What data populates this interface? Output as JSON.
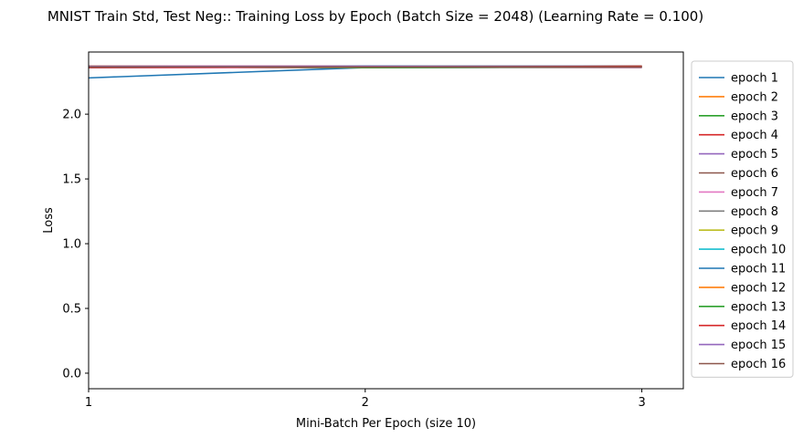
{
  "chart_data": {
    "type": "line",
    "title": "MNIST Train Std, Test Neg:: Training Loss by Epoch (Batch Size = 2048) (Learning Rate = 0.100)",
    "xlabel": "Mini-Batch Per Epoch (size 10)",
    "ylabel": "Loss",
    "xlim": [
      1,
      3.15
    ],
    "ylim": [
      -0.12,
      2.48
    ],
    "xticks": [
      1,
      2,
      3
    ],
    "yticks": [
      0.0,
      0.5,
      1.0,
      1.5,
      2.0
    ],
    "ytick_labels": [
      "0.0",
      "0.5",
      "1.0",
      "1.5",
      "2.0"
    ],
    "grid": false,
    "legend_placement": "outside-right",
    "x": [
      1,
      2,
      3
    ],
    "series": [
      {
        "name": "epoch 1",
        "values": [
          2.28,
          2.36,
          2.365
        ],
        "color": "#1f77b4"
      },
      {
        "name": "epoch 2",
        "values": [
          2.36,
          2.365,
          2.37
        ],
        "color": "#ff7f0e"
      },
      {
        "name": "epoch 3",
        "values": [
          2.365,
          2.365,
          2.365
        ],
        "color": "#2ca02c"
      },
      {
        "name": "epoch 4",
        "values": [
          2.37,
          2.37,
          2.37
        ],
        "color": "#d62728"
      },
      {
        "name": "epoch 5",
        "values": [
          2.36,
          2.365,
          2.365
        ],
        "color": "#9467bd"
      },
      {
        "name": "epoch 6",
        "values": [
          2.365,
          2.365,
          2.36
        ],
        "color": "#8c564b"
      },
      {
        "name": "epoch 7",
        "values": [
          2.36,
          2.36,
          2.36
        ],
        "color": "#e377c2"
      },
      {
        "name": "epoch 8",
        "values": [
          2.365,
          2.36,
          2.365
        ],
        "color": "#7f7f7f"
      },
      {
        "name": "epoch 9",
        "values": [
          2.37,
          2.365,
          2.37
        ],
        "color": "#bcbd22"
      },
      {
        "name": "epoch 10",
        "values": [
          2.36,
          2.37,
          2.365
        ],
        "color": "#17becf"
      },
      {
        "name": "epoch 11",
        "values": [
          2.365,
          2.37,
          2.37
        ],
        "color": "#1f77b4"
      },
      {
        "name": "epoch 12",
        "values": [
          2.37,
          2.365,
          2.365
        ],
        "color": "#ff7f0e"
      },
      {
        "name": "epoch 13",
        "values": [
          2.365,
          2.36,
          2.365
        ],
        "color": "#2ca02c"
      },
      {
        "name": "epoch 14",
        "values": [
          2.36,
          2.365,
          2.37
        ],
        "color": "#d62728"
      },
      {
        "name": "epoch 15",
        "values": [
          2.37,
          2.37,
          2.365
        ],
        "color": "#9467bd"
      },
      {
        "name": "epoch 16",
        "values": [
          2.365,
          2.365,
          2.365
        ],
        "color": "#8c564b"
      }
    ]
  }
}
